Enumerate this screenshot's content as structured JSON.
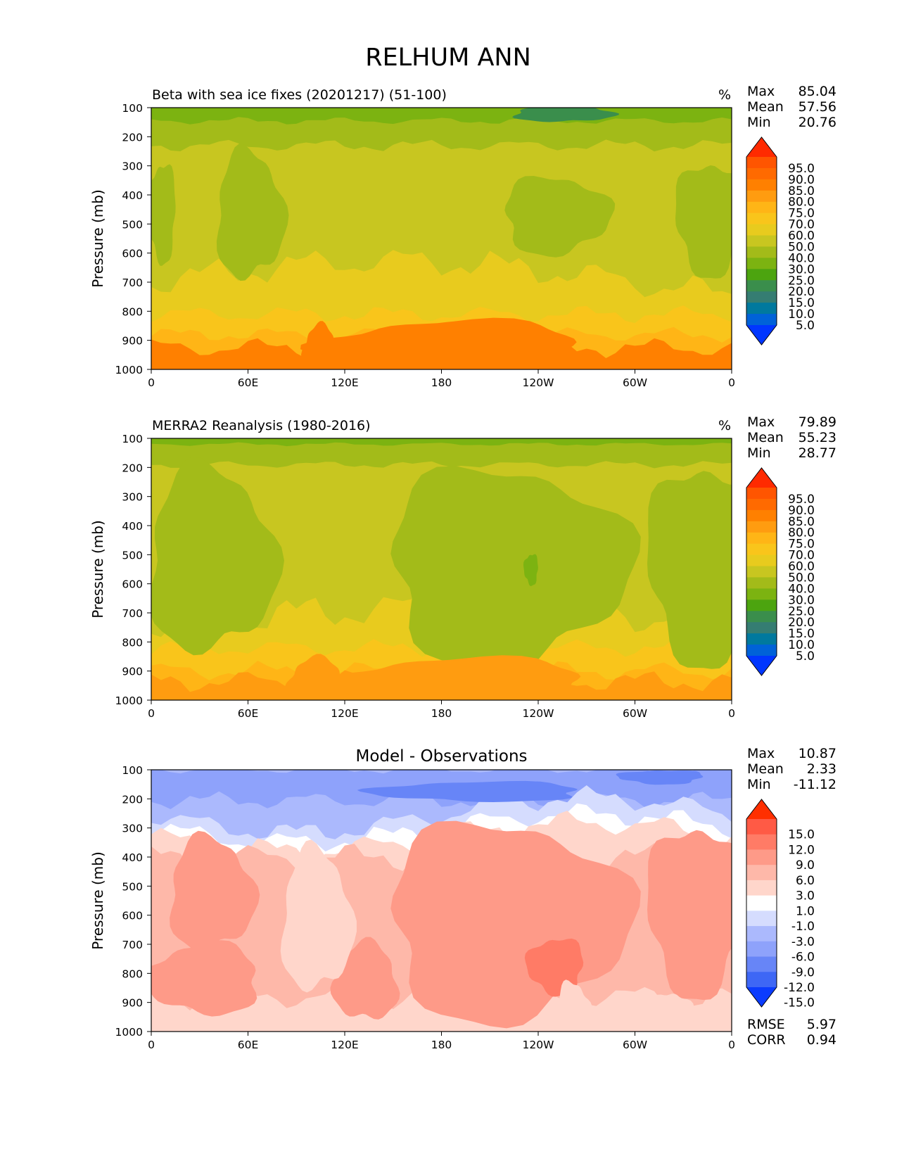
{
  "page": {
    "title": "RELHUM ANN"
  },
  "stat_labels": {
    "max": "Max",
    "mean": "Mean",
    "min": "Min",
    "rmse": "RMSE",
    "corr": "CORR"
  },
  "chart_data": [
    {
      "type": "heatmap",
      "id": "test",
      "title": "Beta with sea ice fixes (20201217) (51-100)",
      "units": "%",
      "ylabel": "Pressure (mb)",
      "xlabel": "",
      "x_ticks": [
        "0",
        "60E",
        "120E",
        "180",
        "120W",
        "60W",
        "0"
      ],
      "y_ticks": [
        "100",
        "200",
        "300",
        "400",
        "500",
        "600",
        "700",
        "800",
        "900",
        "1000"
      ],
      "ylim": [
        1000,
        100
      ],
      "xlim": [
        0,
        360
      ],
      "stats": {
        "max": "85.04",
        "mean": "57.56",
        "min": "20.76"
      },
      "colorbar": {
        "levels": [
          "95.0",
          "90.0",
          "85.0",
          "80.0",
          "75.0",
          "70.0",
          "60.0",
          "50.0",
          "40.0",
          "30.0",
          "25.0",
          "20.0",
          "15.0",
          "10.0",
          "5.0"
        ],
        "colors": [
          "#ff2a00",
          "#ff5500",
          "#ff6a00",
          "#ff8000",
          "#ff9c10",
          "#ffb516",
          "#f9c51b",
          "#e8cb1e",
          "#c8c620",
          "#a3bb19",
          "#7cb311",
          "#4ca40f",
          "#3a8e4c",
          "#357d72",
          "#00799e",
          "#0062d8",
          "#0036ff"
        ]
      },
      "grid": false
    },
    {
      "type": "heatmap",
      "id": "reference",
      "title": "MERRA2 Reanalysis (1980-2016)",
      "units": "%",
      "ylabel": "Pressure (mb)",
      "xlabel": "",
      "x_ticks": [
        "0",
        "60E",
        "120E",
        "180",
        "120W",
        "60W",
        "0"
      ],
      "y_ticks": [
        "100",
        "200",
        "300",
        "400",
        "500",
        "600",
        "700",
        "800",
        "900",
        "1000"
      ],
      "ylim": [
        1000,
        100
      ],
      "xlim": [
        0,
        360
      ],
      "stats": {
        "max": "79.89",
        "mean": "55.23",
        "min": "28.77"
      },
      "colorbar": {
        "levels": [
          "95.0",
          "90.0",
          "85.0",
          "80.0",
          "75.0",
          "70.0",
          "60.0",
          "50.0",
          "40.0",
          "30.0",
          "25.0",
          "20.0",
          "15.0",
          "10.0",
          "5.0"
        ],
        "colors": [
          "#ff2a00",
          "#ff5500",
          "#ff6a00",
          "#ff8000",
          "#ff9c10",
          "#ffb516",
          "#f9c51b",
          "#e8cb1e",
          "#c8c620",
          "#a3bb19",
          "#7cb311",
          "#4ca40f",
          "#3a8e4c",
          "#357d72",
          "#00799e",
          "#0062d8",
          "#0036ff"
        ]
      },
      "grid": false
    },
    {
      "type": "heatmap",
      "id": "difference",
      "title": "Model - Observations",
      "units": "",
      "ylabel": "Pressure (mb)",
      "xlabel": "",
      "x_ticks": [
        "0",
        "60E",
        "120E",
        "180",
        "120W",
        "60W",
        "0"
      ],
      "y_ticks": [
        "100",
        "200",
        "300",
        "400",
        "500",
        "600",
        "700",
        "800",
        "900",
        "1000"
      ],
      "ylim": [
        1000,
        100
      ],
      "xlim": [
        0,
        360
      ],
      "stats": {
        "max": "10.87",
        "mean": "2.33",
        "min": "-11.12",
        "rmse": "5.97",
        "corr": "0.94"
      },
      "colorbar": {
        "levels": [
          "15.0",
          "12.0",
          "9.0",
          "6.0",
          "3.0",
          "1.0",
          "-1.0",
          "-3.0",
          "-6.0",
          "-9.0",
          "-12.0",
          "-15.0"
        ],
        "colors": [
          "#ff2f00",
          "#ff5a45",
          "#ff7b66",
          "#fe9a88",
          "#feb8a9",
          "#ffd6cb",
          "#ffffff",
          "#d5dcfe",
          "#abb9fd",
          "#8ea2fb",
          "#6785f7",
          "#3e67f5",
          "#0b3cfe"
        ]
      },
      "grid": false
    }
  ]
}
